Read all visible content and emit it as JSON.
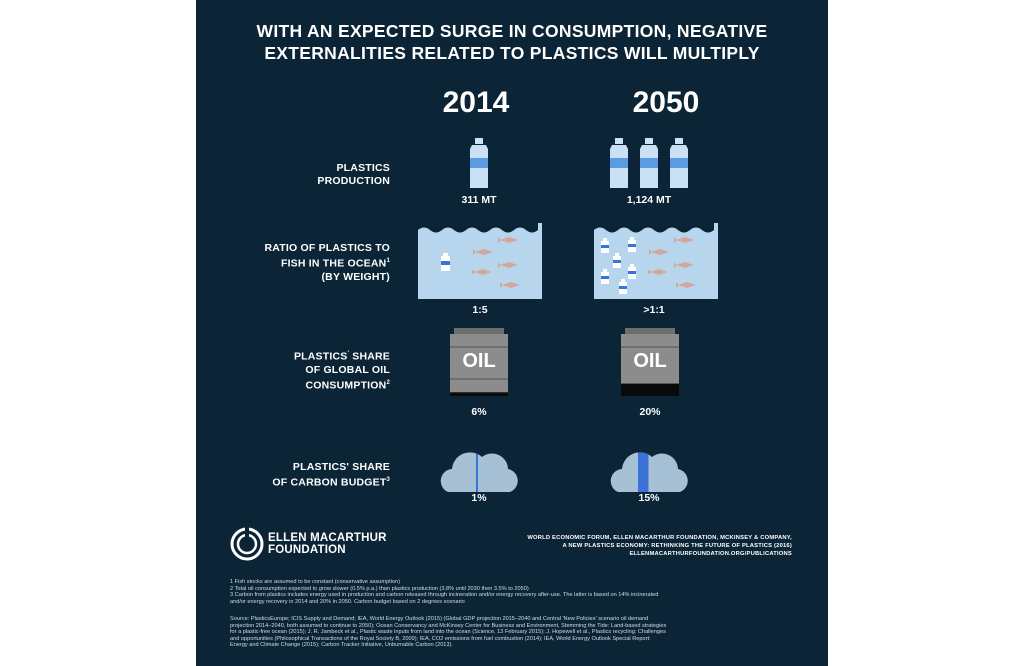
{
  "title": {
    "line1": "WITH AN EXPECTED SURGE IN CONSUMPTION, NEGATIVE",
    "line2": "EXTERNALITIES  RELATED TO PLASTICS WILL MULTIPLY"
  },
  "years": [
    "2014",
    "2050"
  ],
  "rows": {
    "production": {
      "label_l1": "PLASTICS",
      "label_l2": "PRODUCTION",
      "val_2014": "311 MT",
      "val_2050": "1,124 MT"
    },
    "ocean": {
      "label_l1": "RATIO OF PLASTICS TO",
      "label_l2": "FISH IN THE OCEAN",
      "label_l2_sup": "1",
      "label_l3": "(BY WEIGHT)",
      "val_2014": "1:5",
      "val_2050": ">1:1"
    },
    "oil": {
      "label_l1": "PLASTICS",
      "label_l1_sup": "'",
      "label_l1_rest": " SHARE",
      "label_l2": "OF GLOBAL OIL",
      "label_l3": "CONSUMPTION",
      "label_l3_sup": "2",
      "drum_text": "OIL",
      "val_2014": "6%",
      "val_2050": "20%"
    },
    "carbon": {
      "label_l1": "PLASTICS' SHARE",
      "label_l2": "OF CARBON BUDGET",
      "label_l2_sup": "3",
      "val_2014": "1%",
      "val_2050": "15%"
    }
  },
  "shares": {
    "oil_2014": 0.06,
    "oil_2050": 0.2,
    "carbon_2014": 0.01,
    "carbon_2050": 0.15
  },
  "brand": {
    "line1": "ELLEN MACARTHUR",
    "line2": "FOUNDATION"
  },
  "credits": {
    "line1": "WORLD ECONOMIC FORUM, ELLEN MACARTHUR FOUNDATION, MCKINSEY & COMPANY,",
    "line2": "A NEW PLASTICS ECONOMY: RETHINKING THE FUTURE OF PLASTICS (2016)",
    "line3": "ELLENMACARTHURFOUNDATION.ORG/PUBLICATIONS"
  },
  "footnotes": {
    "f1": "1 Fish stocks are assumed to be constant (conservative assumption)",
    "f2": "2 Total oil consumption expected to grow slower (0.5% p.a.) than plastics production (3.8% until 2030 then 3.5% to 2050)",
    "f3a": "3 Carbon from plastics includes energy used in production and carbon released through incineration and/or energy recovery after-use. The latter is based on 14% incinerated",
    "f3b": "and/or energy recovery in 2014 and 20% in 2050. Carbon budget based on 2 degrees scenario"
  },
  "sources": {
    "l1": "Source: PlasticsEurope; ICIS Supply and Demand; IEA, World Energy Outlook (2015) (Global GDP projection 2015–2040 and Central 'New Policies' scenario oil demand",
    "l2": "projection 2014–2040, both assumed to continue to 2050); Ocean Conservancy and McKinsey Center for Business and Environment, Stemming the Tide: Land-based strategies",
    "l3": "for a plastic-free ocean (2015); J. R. Jambeck et al., Plastic waste inputs from land into the ocean (Science, 13 February 2015); J. Hopewell et al., Plastics recycling: Challenges",
    "l4": "and opportunities (Philosophical Transactions of the Royal Society B, 2009); IEA, CO2 emissions from fuel combustion (2014); IEA, World Energy Outlook Special Report:",
    "l5": "Energy and Climate Change (2015); Carbon Tracker Initiative, Unburnable Carbon (2013)."
  },
  "colors": {
    "background": "#0b2436",
    "bottle": "#c9e0f5",
    "water": "#b7d6ee",
    "fish": "#d4a79b",
    "drum": "#8c8c8c",
    "drum_fill": "#0a0a0a",
    "cloud": "#a6c0d6",
    "accent": "#3a73d8"
  }
}
